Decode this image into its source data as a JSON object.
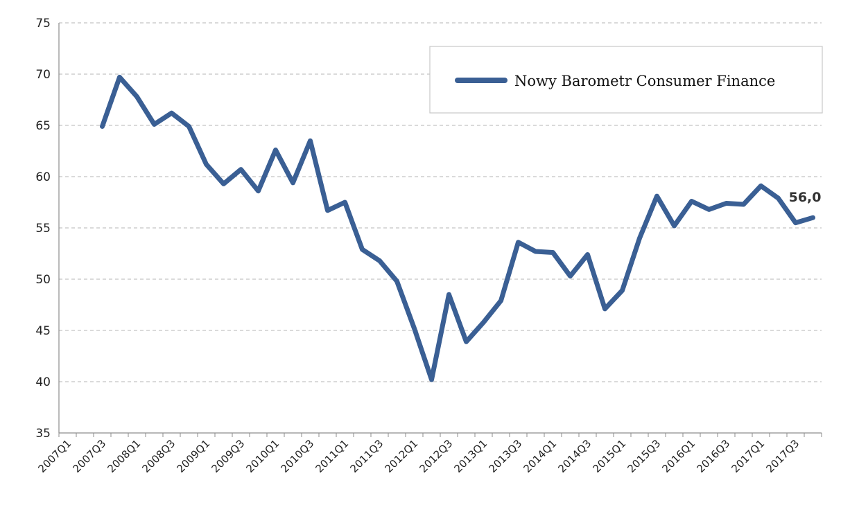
{
  "chart_data": {
    "type": "line",
    "title": "",
    "xlabel": "",
    "ylabel": "",
    "ylim": [
      35,
      75
    ],
    "yticks": [
      35,
      40,
      45,
      50,
      55,
      60,
      65,
      70,
      75
    ],
    "grid": "horizontal-dashed",
    "legend_placement": "top-right",
    "line_color": "#3a5f94",
    "x": [
      "2007Q1",
      "2007Q2",
      "2007Q3",
      "2007Q4",
      "2008Q1",
      "2008Q2",
      "2008Q3",
      "2008Q4",
      "2009Q1",
      "2009Q2",
      "2009Q3",
      "2009Q4",
      "2010Q1",
      "2010Q2",
      "2010Q3",
      "2010Q4",
      "2011Q1",
      "2011Q2",
      "2011Q3",
      "2011Q4",
      "2012Q1",
      "2012Q2",
      "2012Q3",
      "2012Q4",
      "2013Q1",
      "2013Q2",
      "2013Q3",
      "2013Q4",
      "2014Q1",
      "2014Q2",
      "2014Q3",
      "2014Q4",
      "2015Q1",
      "2015Q2",
      "2015Q3",
      "2015Q4",
      "2016Q1",
      "2016Q2",
      "2016Q3",
      "2016Q4",
      "2017Q1",
      "2017Q2",
      "2017Q3",
      "2017Q4"
    ],
    "x_tick_labels": [
      "2007Q1",
      "2007Q3",
      "2008Q1",
      "2008Q3",
      "2009Q1",
      "2009Q3",
      "2010Q1",
      "2010Q3",
      "2011Q1",
      "2011Q3",
      "2012Q1",
      "2012Q3",
      "2013Q1",
      "2013Q3",
      "2014Q1",
      "2014Q3",
      "2015Q1",
      "2015Q3",
      "2016Q1",
      "2016Q3",
      "2017Q1",
      "2017Q3"
    ],
    "series": [
      {
        "name": "Nowy Barometr Consumer Finance",
        "values": [
          null,
          null,
          64.9,
          69.7,
          67.8,
          65.1,
          66.2,
          64.9,
          61.2,
          59.3,
          60.7,
          58.6,
          62.6,
          59.4,
          63.5,
          56.7,
          57.5,
          52.9,
          51.8,
          49.8,
          45.2,
          40.2,
          48.5,
          43.9,
          45.8,
          47.9,
          53.6,
          52.7,
          52.6,
          50.3,
          52.4,
          47.1,
          48.9,
          54.0,
          58.1,
          55.2,
          57.6,
          56.8,
          57.4,
          57.3,
          59.1,
          57.9,
          55.5,
          56.0
        ]
      }
    ],
    "annotations": [
      {
        "x": "2017Q4",
        "y": 56.0,
        "text": "56,0"
      }
    ]
  }
}
